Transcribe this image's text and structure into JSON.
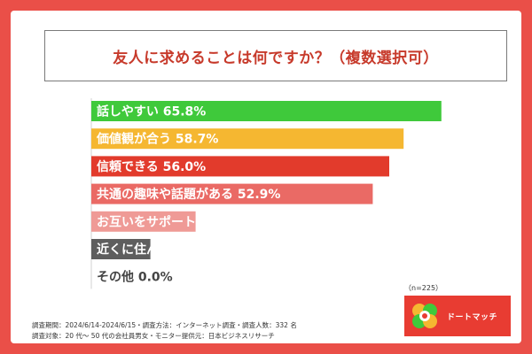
{
  "chart_data": {
    "type": "bar",
    "orientation": "horizontal",
    "title": "友人に求めることは何ですか？（複数選択可）",
    "categories": [
      "話しやすい",
      "価値観が合う",
      "信頼できる",
      "共通の趣味や話題がある",
      "お互いをサポートし合える",
      "近くに住んでいる",
      "その他"
    ],
    "values": [
      65.8,
      58.7,
      56.0,
      52.9,
      19.6,
      11.1,
      0.0
    ],
    "value_labels": [
      "65.8%",
      "58.7%",
      "56.0%",
      "52.9%",
      "19.6%",
      "11.1%",
      "0.0%"
    ],
    "colors": [
      "#3fc93b",
      "#f5b731",
      "#e23b2c",
      "#ea6a65",
      "#ef9a96",
      "#5e5e5e",
      "#bdbdbd"
    ],
    "xlim": [
      0,
      100
    ]
  },
  "note": "（n=225）",
  "logo": {
    "text": "ドートマッチ",
    "icon": "clover-logo-icon"
  },
  "footnotes": [
    "調査期間：2024/6/14-2024/6/15・調査方法：インターネット調査・調査人数：332 名",
    "調査対象：20 代～ 50 代の会社員男女・モニター提供元：日本ビジネスリサーチ"
  ],
  "background_color": "#ea4f48"
}
